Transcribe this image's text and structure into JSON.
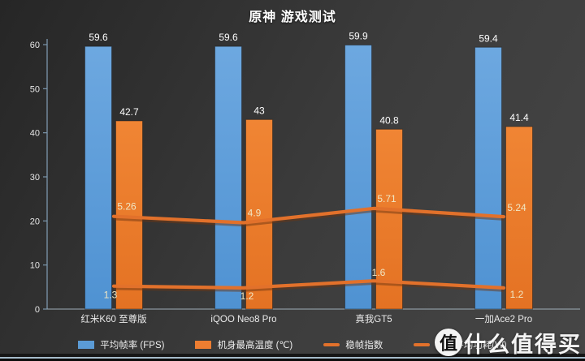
{
  "title": "原神  游戏测试",
  "chart_data": {
    "type": "combo-bar-line",
    "categories": [
      "红米K60 至尊版",
      "iQOO Neo8 Pro",
      "真我GT5",
      "一加Ace2 Pro"
    ],
    "series": [
      {
        "name": "平均帧率 (FPS)",
        "type": "bar",
        "color": "#5B9BD5",
        "values": [
          59.6,
          59.6,
          59.9,
          59.4
        ]
      },
      {
        "name": "机身最高温度 (℃)",
        "type": "bar",
        "color": "#ED7D31",
        "values": [
          42.7,
          43,
          40.8,
          41.4
        ]
      },
      {
        "name": "稳帧指数",
        "type": "line",
        "color": "#E2712B",
        "values": [
          5.26,
          4.9,
          5.71,
          5.24
        ]
      },
      {
        "name": "整机平均功耗(W)",
        "type": "line",
        "color": "#E2712B",
        "values": [
          1.3,
          1.2,
          1.6,
          1.2
        ]
      }
    ],
    "ylim": [
      0,
      60
    ],
    "yticks": [
      0,
      10,
      20,
      30,
      40,
      50,
      60
    ],
    "grid": false,
    "legend_position": "bottom"
  },
  "legend": {
    "items": [
      {
        "label": "平均帧率 (FPS)",
        "type": "bar",
        "color": "#5B9BD5"
      },
      {
        "label": "机身最高温度 (℃)",
        "type": "bar",
        "color": "#ED7D31"
      },
      {
        "label": "稳帧指数",
        "type": "line",
        "color": "#E2712B"
      },
      {
        "label": "整机平均功耗(W)",
        "type": "line",
        "color": "#E2712B"
      }
    ]
  },
  "watermark": {
    "logo_char": "值",
    "text": "什么值得买"
  },
  "colors": {
    "background_dark": "#2a2a2a",
    "background_light": "#464646",
    "axis": "#7c96ac",
    "bar_blue": "#5B9BD5",
    "bar_orange": "#ED7D31",
    "line_orange": "#E2712B",
    "line_label": "#F0E7C4",
    "text": "#FFFFFF"
  }
}
